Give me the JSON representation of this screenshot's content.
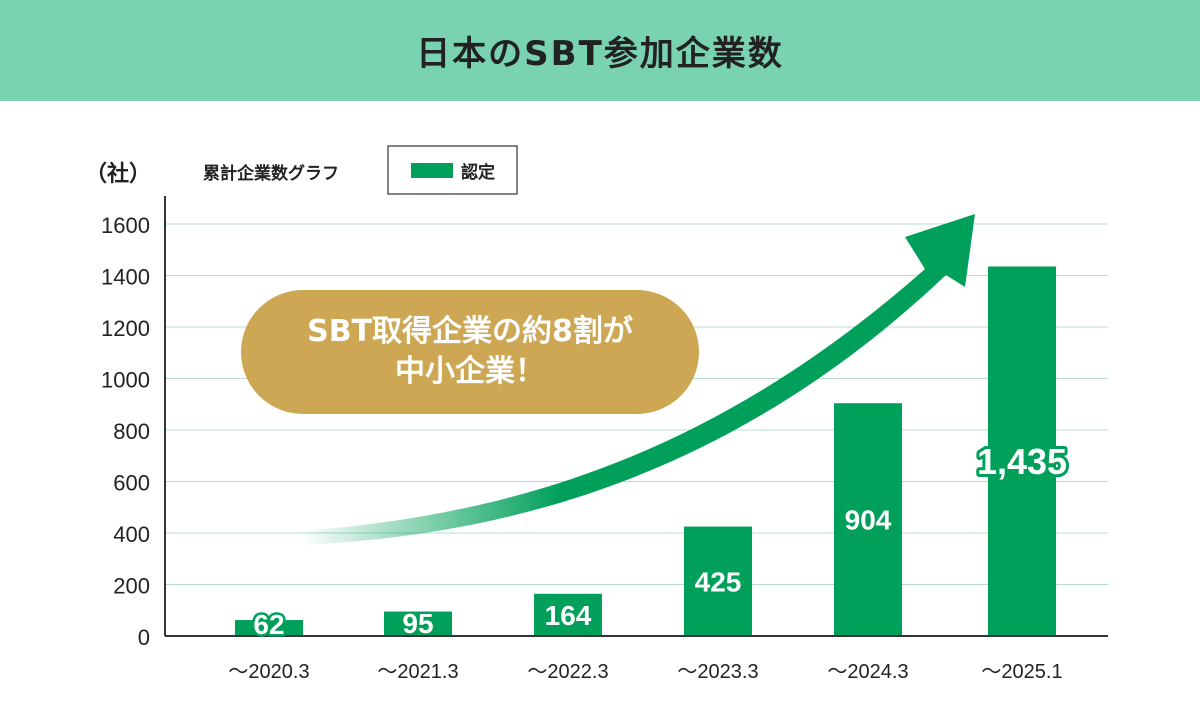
{
  "header": {
    "title": "日本のSBT参加企業数"
  },
  "callout": {
    "line1": "SBT取得企業の約8割が",
    "line2": "中小企業！"
  },
  "colors": {
    "header_bg": "#7ad3b0",
    "bar": "#00a05a",
    "arrow": "#00a05a",
    "callout": "#cda753",
    "grid": "#b8dccb"
  },
  "chart_data": {
    "type": "bar",
    "unit_label": "（社）",
    "legend_title": "累計企業数グラフ",
    "legend_position": "top-left",
    "grid": true,
    "categories": [
      "～2020.3",
      "～2021.3",
      "～2022.3",
      "～2023.3",
      "～2024.3",
      "～2025.1"
    ],
    "series": [
      {
        "name": "認定",
        "values": [
          62,
          95,
          164,
          425,
          904,
          1435
        ]
      }
    ],
    "data_labels": [
      "62",
      "95",
      "164",
      "425",
      "904",
      "1,435"
    ],
    "yticks": [
      0,
      200,
      400,
      600,
      800,
      1000,
      1200,
      1400,
      1600
    ],
    "ylim": [
      0,
      1700
    ]
  }
}
